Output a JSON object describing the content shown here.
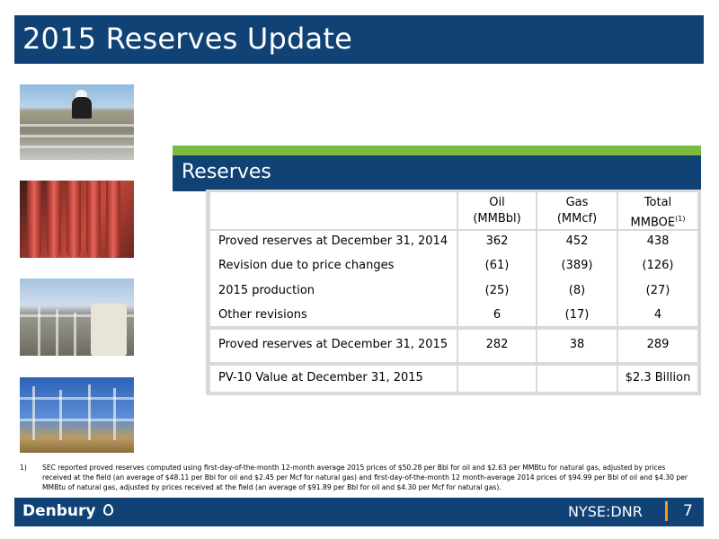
{
  "slide": {
    "title": "2015 Reserves Update",
    "page_number": "7",
    "ticker": "NYSE:DNR",
    "logo_text": "Denbury",
    "accent_color": "#114276",
    "highlight_color": "#7cba3f"
  },
  "reserves": {
    "header": "Reserves",
    "columns": [
      {
        "line1": "Oil",
        "line2": "(MMBbl)"
      },
      {
        "line1": "Gas",
        "line2": "(MMcf)"
      },
      {
        "line1": "Total",
        "line2": "MMBOE",
        "sup": "(1)"
      }
    ],
    "rows": [
      {
        "label": "Proved reserves at December 31, 2014",
        "oil": "362",
        "gas": "452",
        "total": "438"
      },
      {
        "label": "Revision due to price changes",
        "oil": "(61)",
        "gas": "(389)",
        "total": "(126)"
      },
      {
        "label": "2015 production",
        "oil": "(25)",
        "gas": "(8)",
        "total": "(27)"
      },
      {
        "label": "Other revisions",
        "oil": "6",
        "gas": "(17)",
        "total": "4"
      }
    ],
    "total_row": {
      "label": "Proved reserves at December 31, 2015",
      "oil": "282",
      "gas": "38",
      "total": "289"
    },
    "pv10_row": {
      "label": "PV-10 Value at December 31, 2015",
      "oil": "",
      "gas": "",
      "total": "$2.3 Billion"
    }
  },
  "footnote": {
    "number": "1)",
    "text": "SEC reported proved reserves computed using first-day-of-the-month 12-month average 2015 prices of $50.28 per Bbl for oil and $2.63 per MMBtu for natural gas, adjusted by prices received at the field (an average of $48.11 per Bbl for oil and $2.45 per Mcf for natural gas) and first-day-of-the-month 12 month-average 2014 prices of $94.99 per Bbl of oil and $4.30 per MMBtu of natural gas, adjusted by prices received at the field (an average of $91.89 per Bbl for oil and $4.30 per Mcf for natural gas)."
  },
  "images": [
    {
      "icon": "oilfield-worker-photo"
    },
    {
      "icon": "red-pipes-photo"
    },
    {
      "icon": "walkway-tank-photo"
    },
    {
      "icon": "steel-structure-photo"
    }
  ]
}
